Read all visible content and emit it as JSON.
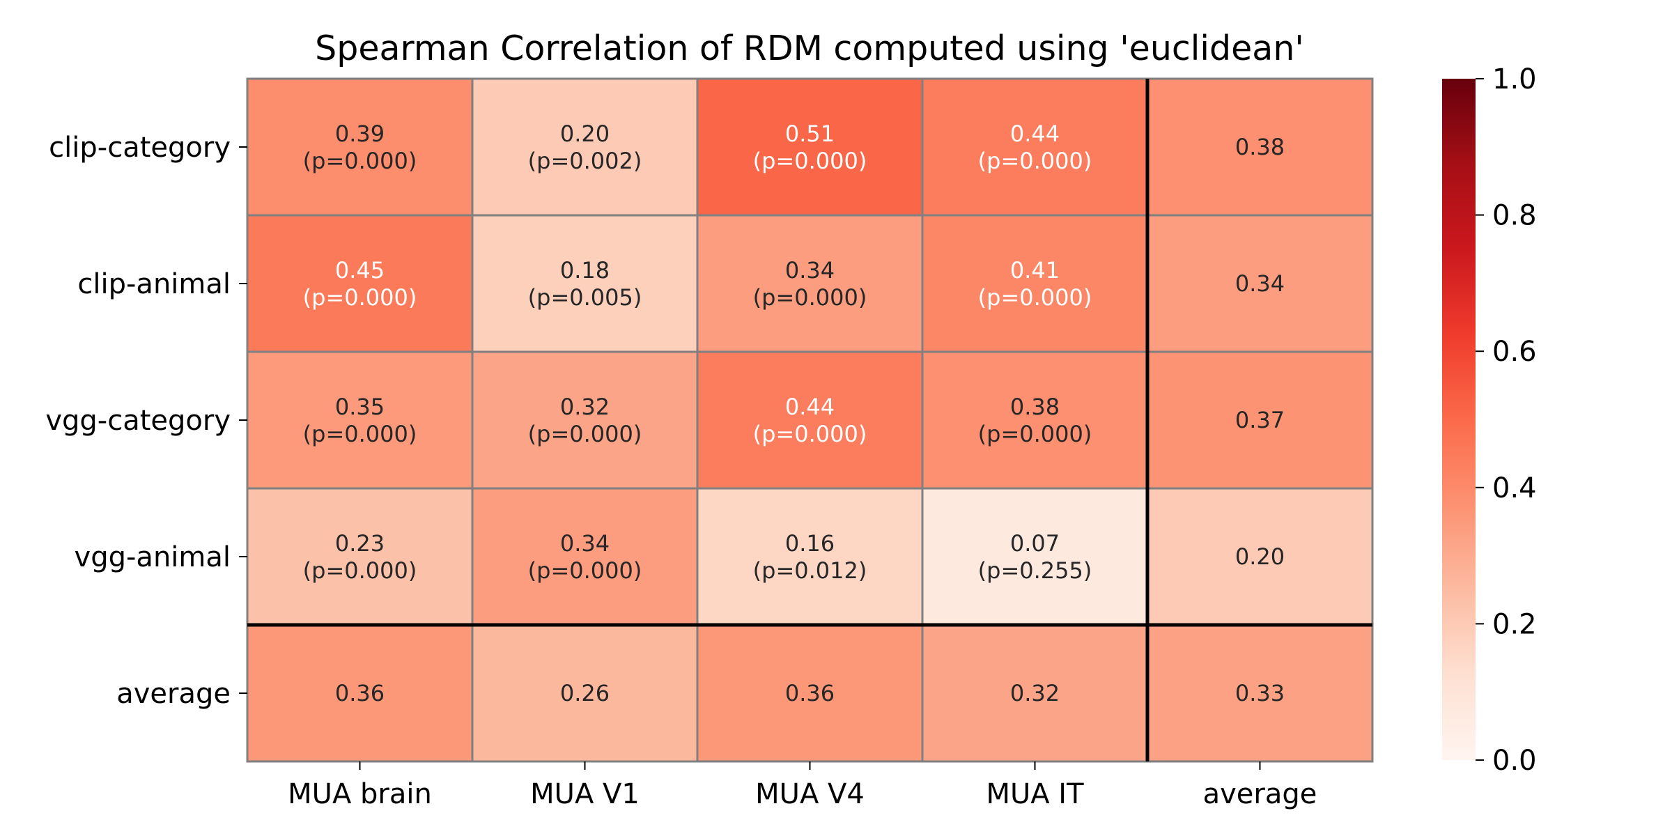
{
  "chart_data": {
    "type": "heatmap",
    "title": "Spearman Correlation of RDM computed using 'euclidean'",
    "xlabel": "",
    "ylabel": "",
    "columns": [
      "MUA brain",
      "MUA V1",
      "MUA V4",
      "MUA IT",
      "average"
    ],
    "rows": [
      "clip-category",
      "clip-animal",
      "vgg-category",
      "vgg-animal",
      "average"
    ],
    "values": [
      [
        0.39,
        0.2,
        0.51,
        0.44,
        0.38
      ],
      [
        0.45,
        0.18,
        0.34,
        0.41,
        0.34
      ],
      [
        0.35,
        0.32,
        0.44,
        0.38,
        0.37
      ],
      [
        0.23,
        0.34,
        0.16,
        0.07,
        0.2
      ],
      [
        0.36,
        0.26,
        0.36,
        0.32,
        0.33
      ]
    ],
    "value_labels": [
      [
        "0.39",
        "0.20",
        "0.51",
        "0.44",
        "0.38"
      ],
      [
        "0.45",
        "0.18",
        "0.34",
        "0.41",
        "0.34"
      ],
      [
        "0.35",
        "0.32",
        "0.44",
        "0.38",
        "0.37"
      ],
      [
        "0.23",
        "0.34",
        "0.16",
        "0.07",
        "0.20"
      ],
      [
        "0.36",
        "0.26",
        "0.36",
        "0.32",
        "0.33"
      ]
    ],
    "p_labels": [
      [
        "(p=0.000)",
        "(p=0.002)",
        "(p=0.000)",
        "(p=0.000)",
        ""
      ],
      [
        "(p=0.000)",
        "(p=0.005)",
        "(p=0.000)",
        "(p=0.000)",
        ""
      ],
      [
        "(p=0.000)",
        "(p=0.000)",
        "(p=0.000)",
        "(p=0.000)",
        ""
      ],
      [
        "(p=0.000)",
        "(p=0.000)",
        "(p=0.012)",
        "(p=0.255)",
        ""
      ],
      [
        "",
        "",
        "",
        "",
        ""
      ]
    ],
    "colorbar": {
      "range": [
        0.0,
        1.0
      ],
      "ticks": [
        "0.0",
        "0.2",
        "0.4",
        "0.6",
        "0.8",
        "1.0"
      ],
      "colormap": "Reds",
      "colormap_stops": [
        "#fff5f0",
        "#fee0d2",
        "#fcbba1",
        "#fc9272",
        "#fb6a4a",
        "#ef3b2c",
        "#cb181d",
        "#a50f15",
        "#67000d"
      ]
    },
    "separator_after_row": 3,
    "separator_after_column": 3,
    "grid": true,
    "cell_border_color": "#808080",
    "separator_color": "#000000",
    "text_dark": "#262626",
    "text_light": "#ffffff"
  }
}
